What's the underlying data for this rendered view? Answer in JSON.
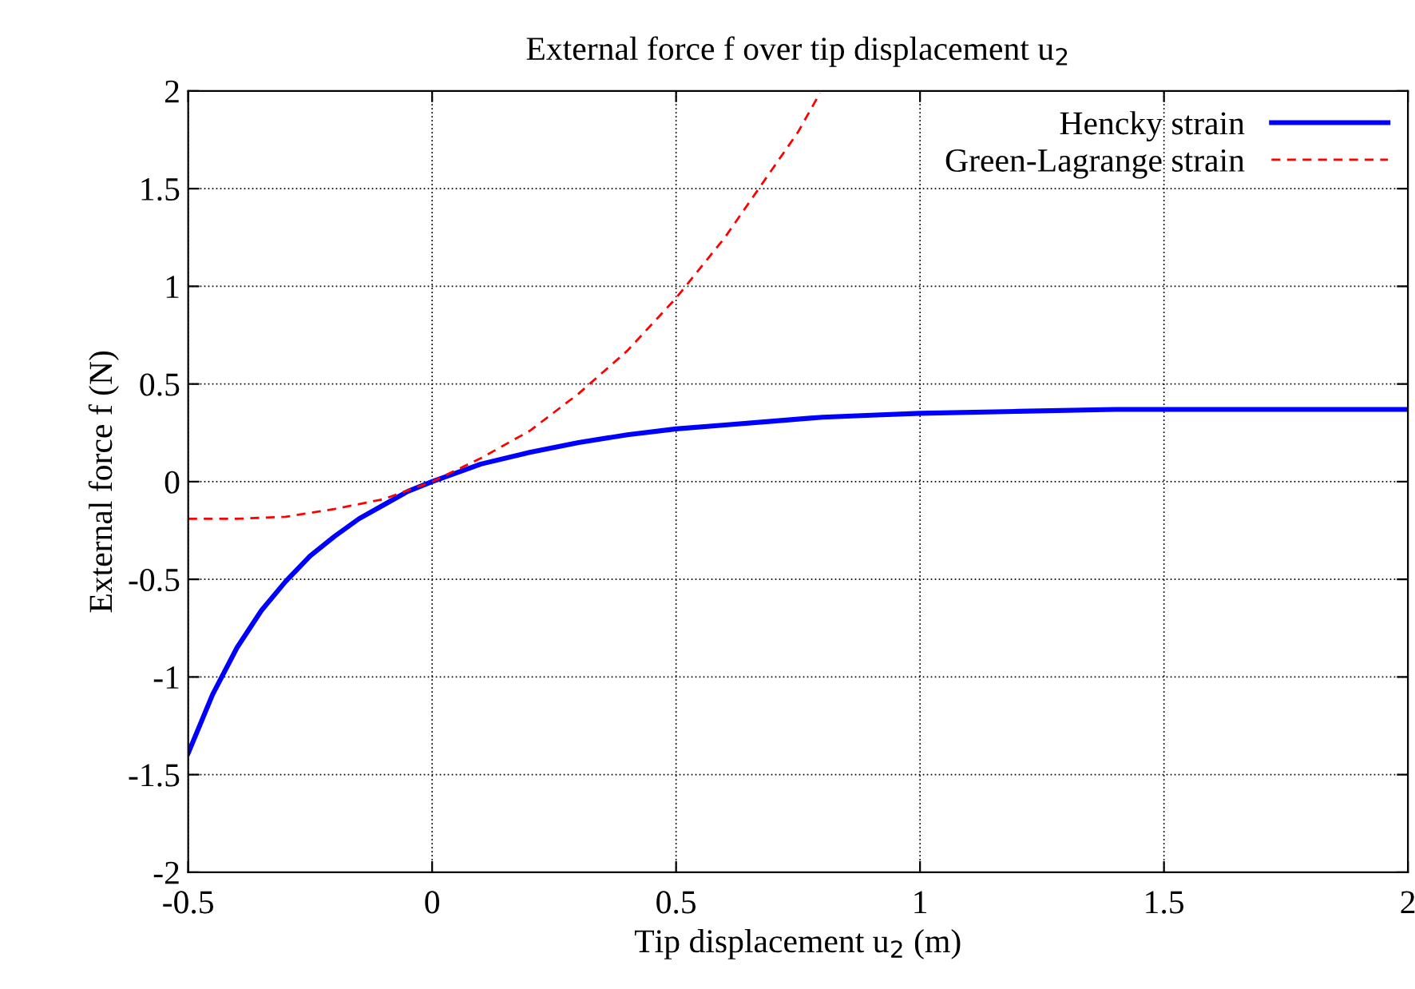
{
  "chart_data": {
    "type": "line",
    "title": "External force f over tip displacement u$_{2}$",
    "xlabel": "Tip displacement u$_{2}$ (m)",
    "ylabel": "External force f (N)",
    "xlim": [
      -0.5,
      2
    ],
    "ylim": [
      -2,
      2
    ],
    "xticks": [
      {
        "value": -0.5,
        "label": "-0.5"
      },
      0,
      0.5,
      1,
      1.5,
      2
    ],
    "yticks": [
      {
        "value": -2,
        "label": "-2"
      },
      {
        "value": -1.5,
        "label": "-1.5"
      },
      {
        "value": -1,
        "label": "-1"
      },
      {
        "value": -0.5,
        "label": "-0.5"
      },
      0,
      0.5,
      1,
      1.5,
      2
    ],
    "grid": true,
    "legend": "top right",
    "marker": "none",
    "series": [
      {
        "name": "Hencky strain",
        "color": "#0000ff",
        "line_style": "solid",
        "x": [
          -0.5,
          -0.45,
          -0.4,
          -0.35,
          -0.3,
          -0.25,
          -0.2,
          -0.15,
          -0.1,
          -0.05,
          0,
          0.1,
          0.2,
          0.3,
          0.4,
          0.5,
          0.6,
          0.7,
          0.8,
          0.9,
          1.0,
          1.2,
          1.4,
          1.6,
          1.8,
          2.0
        ],
        "values": [
          -1.39,
          -1.09,
          -0.85,
          -0.66,
          -0.51,
          -0.38,
          -0.28,
          -0.19,
          -0.12,
          -0.05,
          0,
          0.09,
          0.15,
          0.2,
          0.24,
          0.27,
          0.29,
          0.31,
          0.33,
          0.34,
          0.35,
          0.36,
          0.37,
          0.37,
          0.37,
          0.37
        ]
      },
      {
        "name": "Green-Lagrange strain",
        "color": "#ff0000",
        "line_style": "dashed",
        "x": [
          -0.5,
          -0.4,
          -0.3,
          -0.2,
          -0.1,
          0,
          0.1,
          0.2,
          0.3,
          0.4,
          0.5,
          0.6,
          0.7,
          0.75,
          0.795
        ],
        "values": [
          -0.19,
          -0.19,
          -0.18,
          -0.14,
          -0.09,
          0,
          0.12,
          0.26,
          0.45,
          0.67,
          0.94,
          1.25,
          1.61,
          1.79,
          1.99
        ]
      }
    ]
  }
}
